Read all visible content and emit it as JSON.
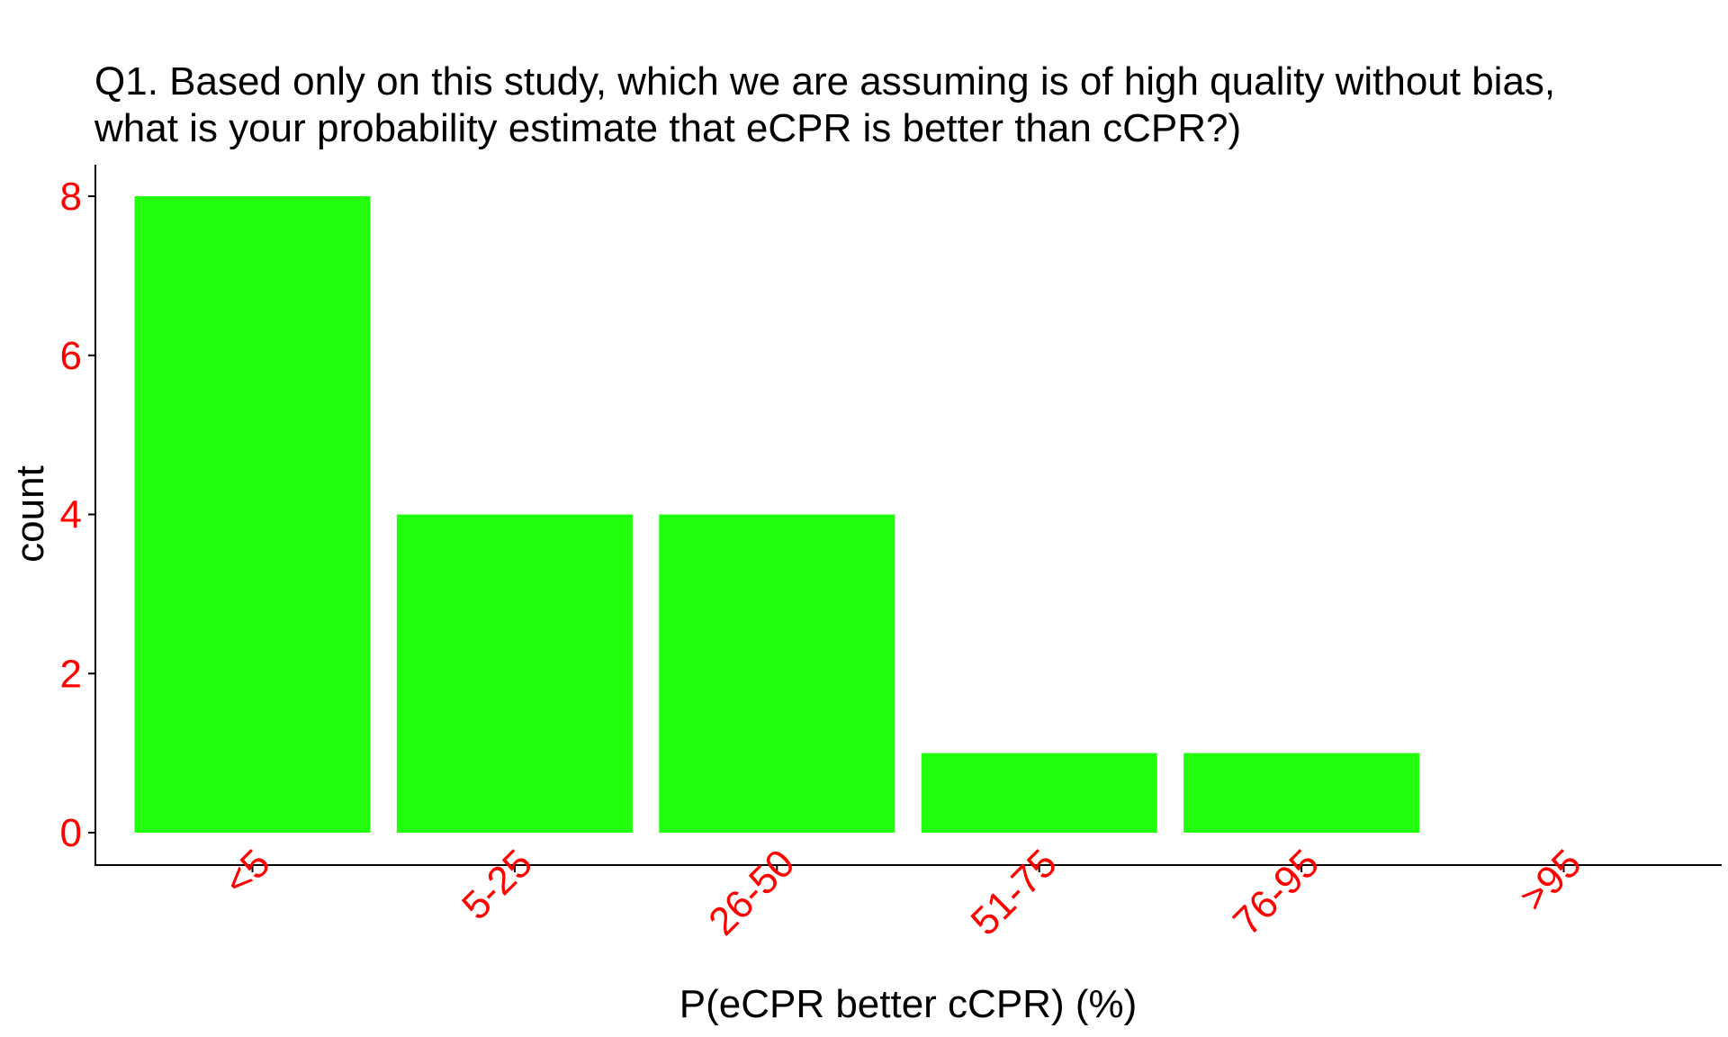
{
  "chart_data": {
    "type": "bar",
    "title": [
      "Q1. Based only on this study, which we are assuming is of high quality without bias,",
      "what is your probability estimate that eCPR is better than cCPR?)"
    ],
    "xlabel": "P(eCPR better cCPR) (%)",
    "ylabel": "count",
    "categories": [
      "<5",
      "5-25",
      "26-50",
      "51-75",
      "76-95",
      ">95"
    ],
    "values": [
      8,
      4,
      4,
      1,
      1,
      0
    ],
    "yticks": [
      0,
      2,
      4,
      6,
      8
    ],
    "ylim": [
      0,
      8
    ],
    "grid": false,
    "legend": "none"
  },
  "colors": {
    "bar": "#22ff0d",
    "tick_label": "#ff0000",
    "axis": "#000000",
    "text": "#000000"
  }
}
